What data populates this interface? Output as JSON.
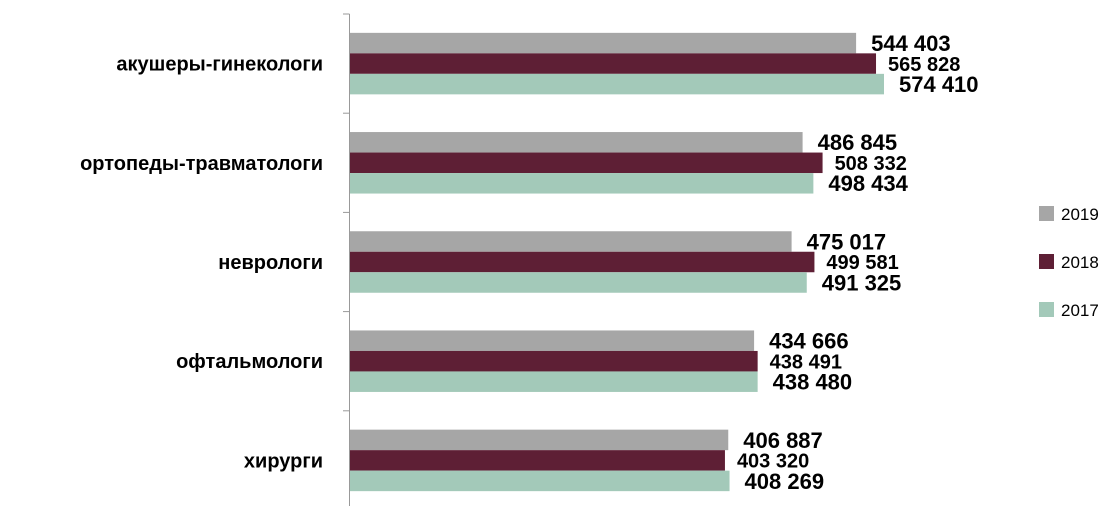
{
  "chart_data": {
    "type": "bar",
    "orientation": "horizontal",
    "categories": [
      "акушеры-гинекологи",
      "ортопеды-травматологи",
      "неврологи",
      "офтальмологи",
      "хирурги"
    ],
    "series": [
      {
        "name": "2019",
        "color": "#a6a6a6",
        "values": [
          544403,
          486845,
          475017,
          434666,
          406887
        ],
        "labels": [
          "544 403",
          "486 845",
          "475 017",
          "434 666",
          "406 887"
        ]
      },
      {
        "name": "2018",
        "color": "#5e1f35",
        "values": [
          565828,
          508332,
          499581,
          438491,
          403320
        ],
        "labels": [
          "565 828",
          "508 332",
          "499 581",
          "438 491",
          "403 320"
        ]
      },
      {
        "name": "2017",
        "color": "#a3c9b9",
        "values": [
          574410,
          498434,
          491325,
          438480,
          408269
        ],
        "labels": [
          "574 410",
          "498 434",
          "491 325",
          "438 480",
          "408 269"
        ]
      }
    ],
    "legend_position": "right",
    "grid": false
  }
}
